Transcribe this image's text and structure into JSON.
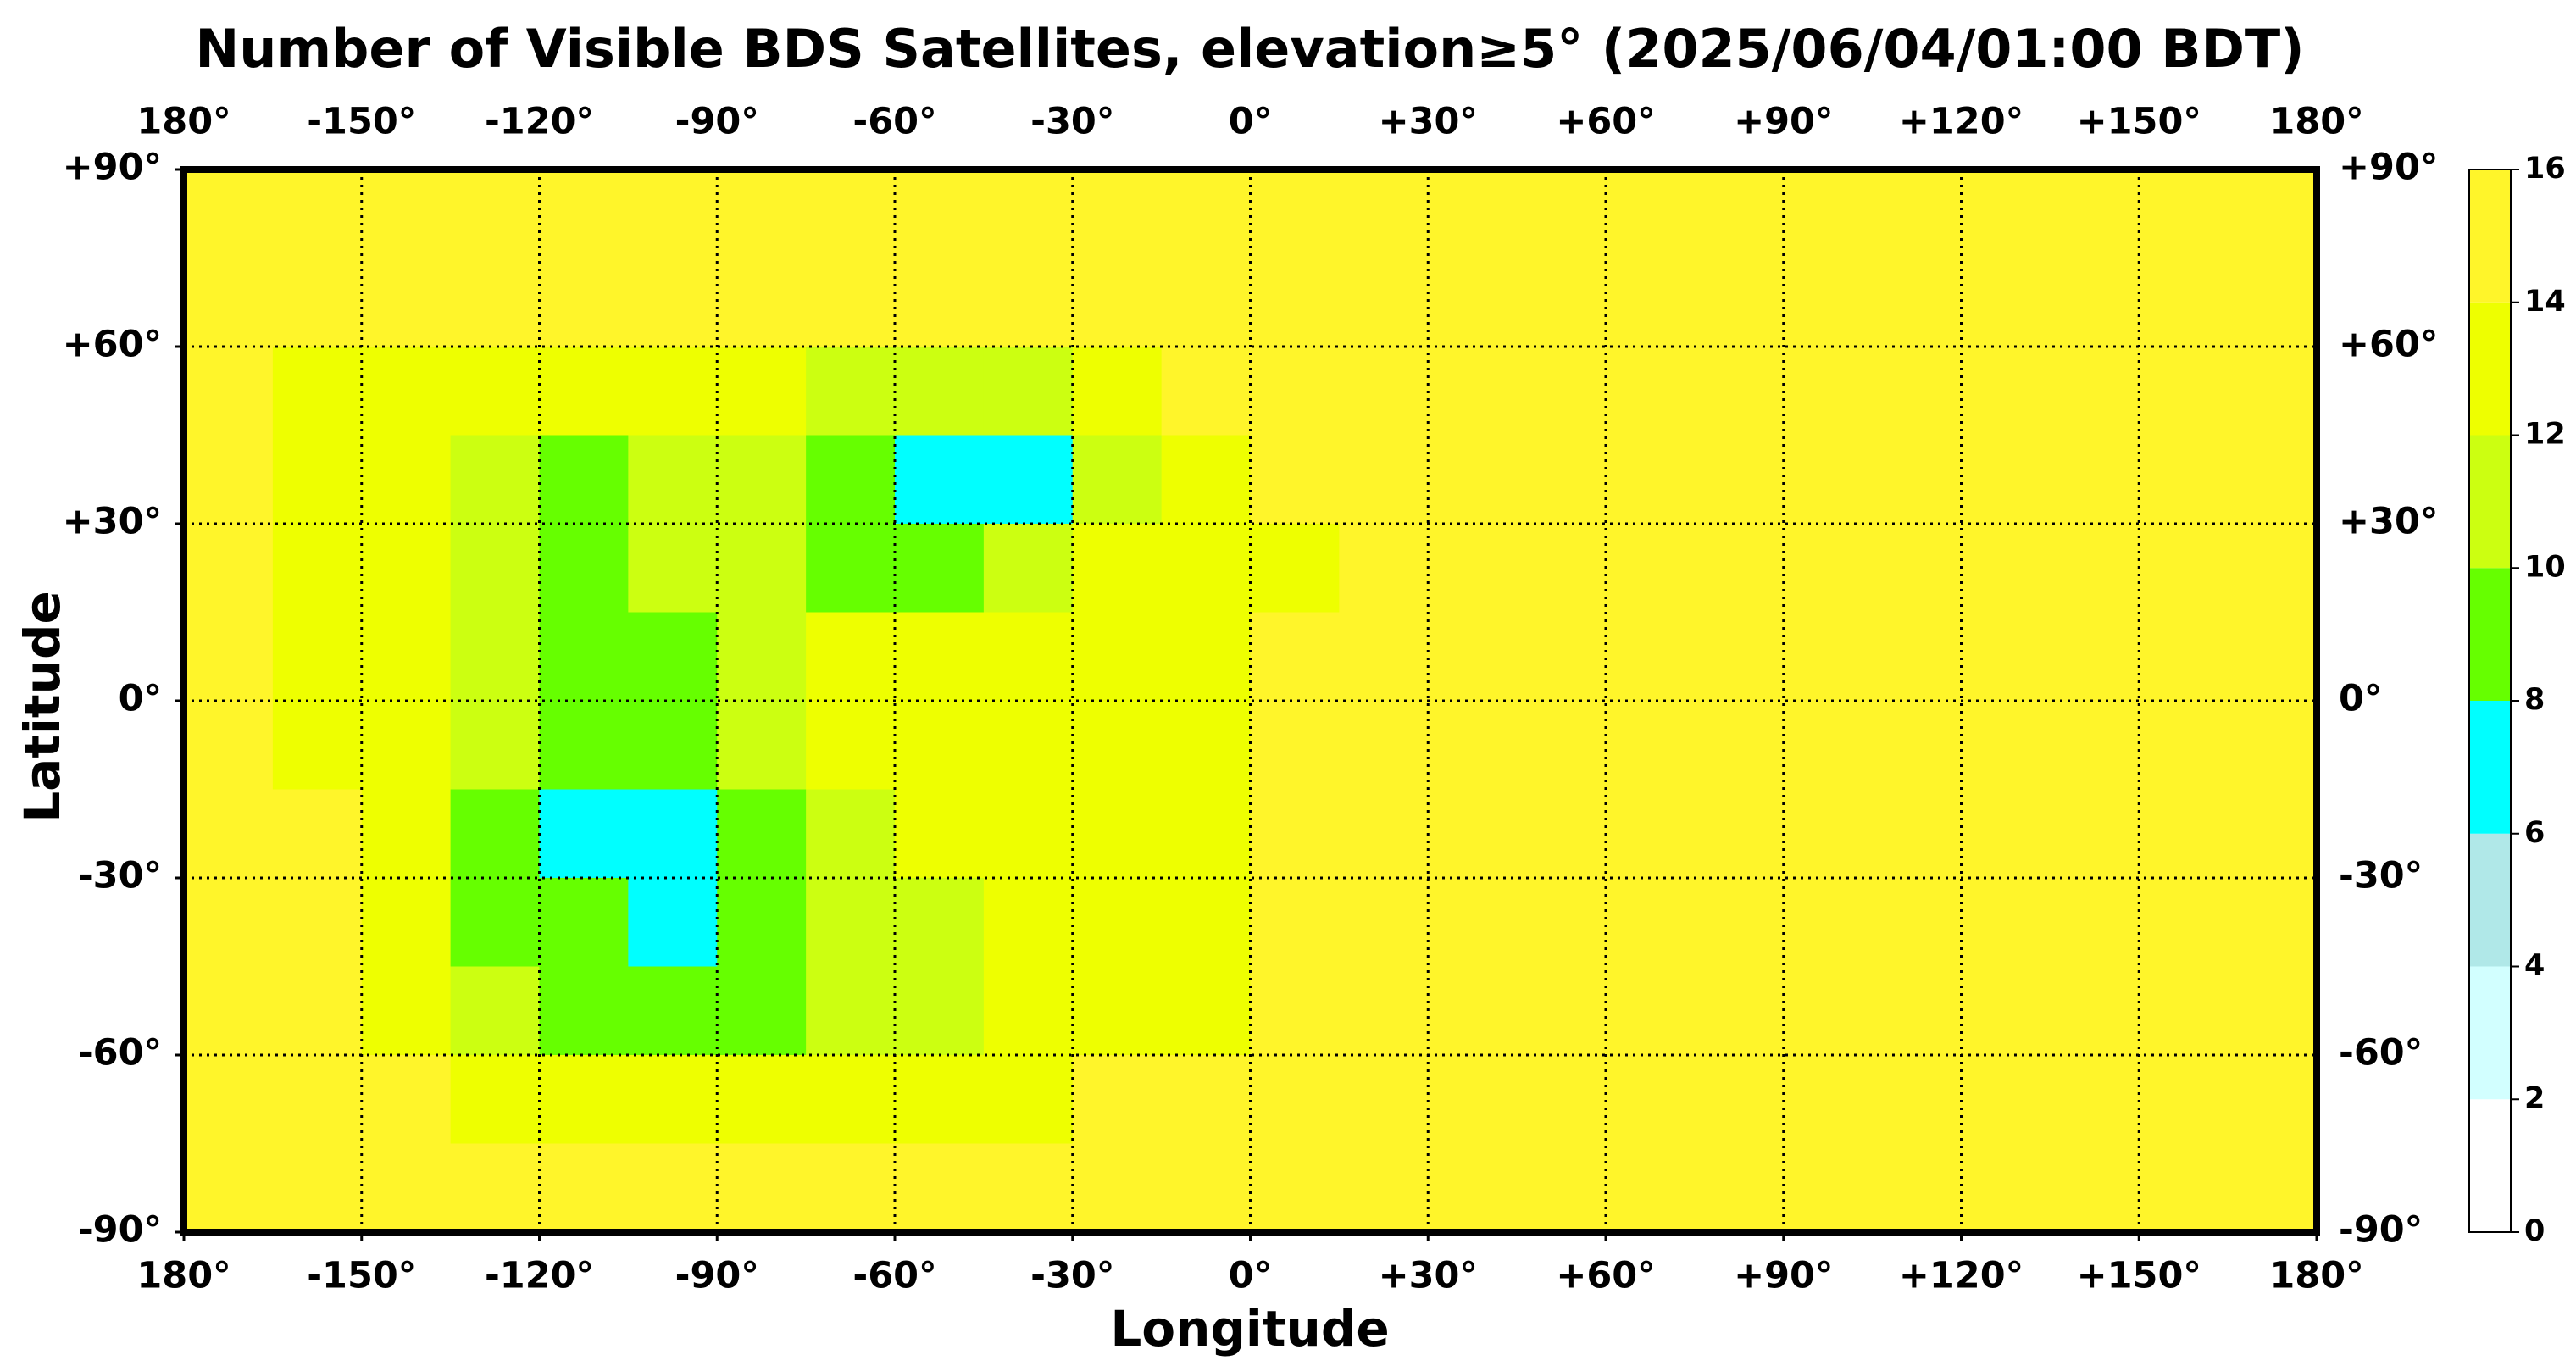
{
  "chart_data": {
    "type": "heatmap",
    "title": "Number of Visible BDS Satellites, elevation≥5° (2025/06/04/01:00 BDT)",
    "xlabel": "Longitude",
    "ylabel": "Latitude",
    "xlim": [
      -180,
      180
    ],
    "ylim": [
      -90,
      90
    ],
    "xticks": [
      {
        "value": -180,
        "label": "180°"
      },
      {
        "value": -150,
        "label": "-150°"
      },
      {
        "value": -120,
        "label": "-120°"
      },
      {
        "value": -90,
        "label": "-90°"
      },
      {
        "value": -60,
        "label": "-60°"
      },
      {
        "value": -30,
        "label": "-30°"
      },
      {
        "value": 0,
        "label": "0°"
      },
      {
        "value": 30,
        "label": "+30°"
      },
      {
        "value": 60,
        "label": "+60°"
      },
      {
        "value": 90,
        "label": "+90°"
      },
      {
        "value": 120,
        "label": "+120°"
      },
      {
        "value": 150,
        "label": "+150°"
      },
      {
        "value": 180,
        "label": "180°"
      }
    ],
    "yticks": [
      {
        "value": 90,
        "label": "+90°"
      },
      {
        "value": 60,
        "label": "+60°"
      },
      {
        "value": 30,
        "label": "+30°"
      },
      {
        "value": 0,
        "label": "0°"
      },
      {
        "value": -30,
        "label": "-30°"
      },
      {
        "value": -60,
        "label": "-60°"
      },
      {
        "value": -90,
        "label": "-90°"
      }
    ],
    "grid": true,
    "x": [
      -172.5,
      -157.5,
      -142.5,
      -127.5,
      -112.5,
      -97.5,
      -82.5,
      -67.5,
      -52.5,
      -37.5,
      -22.5,
      -7.5,
      7.5,
      22.5,
      37.5,
      52.5,
      67.5,
      82.5,
      97.5,
      112.5,
      127.5,
      142.5,
      157.5,
      172.5
    ],
    "y": [
      82.5,
      67.5,
      52.5,
      37.5,
      22.5,
      7.5,
      -7.5,
      -22.5,
      -37.5,
      -52.5,
      -67.5,
      -82.5
    ],
    "values": [
      [
        15,
        15,
        15,
        15,
        15,
        15,
        15,
        15,
        15,
        15,
        15,
        15,
        15,
        15,
        15,
        15,
        15,
        15,
        15,
        15,
        15,
        15,
        15,
        15
      ],
      [
        15,
        15,
        15,
        15,
        15,
        15,
        15,
        15,
        15,
        15,
        15,
        15,
        15,
        15,
        15,
        15,
        15,
        15,
        15,
        15,
        15,
        15,
        15,
        15
      ],
      [
        15,
        13,
        13,
        13,
        13,
        13,
        13,
        11,
        11,
        11,
        13,
        15,
        15,
        15,
        15,
        15,
        15,
        15,
        15,
        15,
        15,
        15,
        15,
        15
      ],
      [
        15,
        13,
        13,
        11,
        9,
        11,
        11,
        9,
        7,
        7,
        11,
        13,
        15,
        15,
        15,
        15,
        15,
        15,
        15,
        15,
        15,
        15,
        15,
        15
      ],
      [
        15,
        13,
        13,
        11,
        9,
        11,
        11,
        9,
        9,
        11,
        13,
        13,
        13,
        15,
        15,
        15,
        15,
        15,
        15,
        15,
        15,
        15,
        15,
        15
      ],
      [
        15,
        13,
        13,
        11,
        9,
        9,
        11,
        13,
        13,
        13,
        13,
        13,
        15,
        15,
        15,
        15,
        15,
        15,
        15,
        15,
        15,
        15,
        15,
        15
      ],
      [
        15,
        13,
        13,
        11,
        9,
        9,
        11,
        13,
        13,
        13,
        13,
        13,
        15,
        15,
        15,
        15,
        15,
        15,
        15,
        15,
        15,
        15,
        15,
        15
      ],
      [
        15,
        15,
        13,
        9,
        7,
        7,
        9,
        11,
        13,
        13,
        13,
        13,
        15,
        15,
        15,
        15,
        15,
        15,
        15,
        15,
        15,
        15,
        15,
        15
      ],
      [
        15,
        15,
        13,
        9,
        9,
        7,
        9,
        11,
        11,
        13,
        13,
        13,
        15,
        15,
        15,
        15,
        15,
        15,
        15,
        15,
        15,
        15,
        15,
        15
      ],
      [
        15,
        15,
        13,
        11,
        9,
        9,
        9,
        11,
        11,
        13,
        13,
        13,
        15,
        15,
        15,
        15,
        15,
        15,
        15,
        15,
        15,
        15,
        15,
        15
      ],
      [
        15,
        15,
        15,
        13,
        13,
        13,
        13,
        13,
        13,
        13,
        15,
        15,
        15,
        15,
        15,
        15,
        15,
        15,
        15,
        15,
        15,
        15,
        15,
        15
      ],
      [
        15,
        15,
        15,
        15,
        15,
        15,
        15,
        15,
        15,
        15,
        15,
        15,
        15,
        15,
        15,
        15,
        15,
        15,
        15,
        15,
        15,
        15,
        15,
        15
      ]
    ],
    "colorbar": {
      "levels": [
        0,
        2,
        4,
        6,
        8,
        10,
        12,
        14,
        16
      ],
      "colors": [
        "#ffffff",
        "#d2ffff",
        "#b0e8e8",
        "#00ffff",
        "#66ff00",
        "#ccff11",
        "#eeff00",
        "#fff52a"
      ]
    }
  }
}
